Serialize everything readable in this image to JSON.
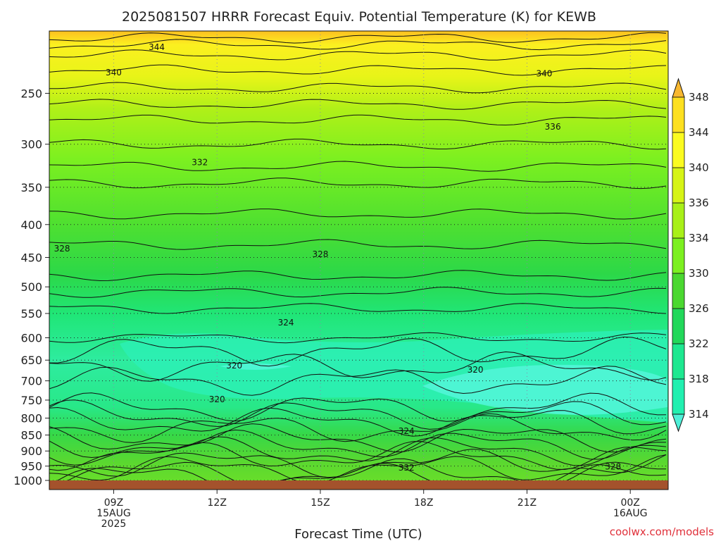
{
  "chart_data": {
    "type": "heatmap",
    "title": "2025081507 HRRR Forecast Equiv. Potential Temperature (K) for KEWB",
    "xlabel": "Forecast Time (UTC)",
    "ylabel": "",
    "credit": "coolwx.com/models",
    "y_scale": "log-pressure",
    "ylim_hPa": [
      1000,
      200
    ],
    "y_ticks": [
      "250",
      "300",
      "350",
      "400",
      "450",
      "500",
      "550",
      "600",
      "650",
      "700",
      "750",
      "800",
      "850",
      "900",
      "950",
      "1000"
    ],
    "x_ticks": [
      {
        "lines": [
          "09Z",
          "15AUG",
          "2025"
        ]
      },
      {
        "lines": [
          "12Z"
        ]
      },
      {
        "lines": [
          "15Z"
        ]
      },
      {
        "lines": [
          "18Z"
        ]
      },
      {
        "lines": [
          "21Z"
        ]
      },
      {
        "lines": [
          "00Z",
          "16AUG"
        ]
      }
    ],
    "grid": "dotted",
    "colorbar": {
      "labels": [
        "314",
        "318",
        "322",
        "326",
        "330",
        "334",
        "336",
        "340",
        "344",
        "348"
      ],
      "colors": [
        "#4ff0d8",
        "#22f0b0",
        "#1ee890",
        "#22d85a",
        "#4ad830",
        "#7cf020",
        "#a8f018",
        "#d6f416",
        "#fbfb20",
        "#fde020",
        "#f8b830"
      ]
    },
    "isotherms_K": [
      {
        "value": 344,
        "pressure_hPa": 210
      },
      {
        "value": 340,
        "pressure_hPa": 230
      },
      {
        "value": 336,
        "pressure_hPa": 275
      },
      {
        "value": 332,
        "pressure_hPa": 325
      },
      {
        "value": 328,
        "pressure_hPa": 430
      },
      {
        "value": 324,
        "pressure_hPa": 540
      },
      {
        "value": 320,
        "pressure_hPa": 665
      },
      {
        "value": 324,
        "pressure_hPa": 830
      },
      {
        "value": 328,
        "pressure_hPa": 940
      },
      {
        "value": 332,
        "pressure_hPa": 960
      }
    ],
    "contour_labels": [
      {
        "text": "344",
        "time": "10:15Z",
        "pressure_hPa": 212
      },
      {
        "text": "340",
        "time": "09:00Z",
        "pressure_hPa": 232
      },
      {
        "text": "340",
        "time": "21:30Z",
        "pressure_hPa": 233
      },
      {
        "text": "336",
        "time": "21:45Z",
        "pressure_hPa": 282
      },
      {
        "text": "332",
        "time": "11:30Z",
        "pressure_hPa": 320
      },
      {
        "text": "328",
        "time": "07:30Z",
        "pressure_hPa": 436
      },
      {
        "text": "328",
        "time": "15:00Z",
        "pressure_hPa": 445
      },
      {
        "text": "324",
        "time": "14:00Z",
        "pressure_hPa": 568
      },
      {
        "text": "320",
        "time": "12:30Z",
        "pressure_hPa": 663
      },
      {
        "text": "320",
        "time": "19:30Z",
        "pressure_hPa": 673
      },
      {
        "text": "320",
        "time": "12:00Z",
        "pressure_hPa": 748
      },
      {
        "text": "324",
        "time": "17:30Z",
        "pressure_hPa": 838
      },
      {
        "text": "332",
        "time": "17:30Z",
        "pressure_hPa": 956
      },
      {
        "text": "328",
        "time": "23:30Z",
        "pressure_hPa": 952
      }
    ]
  }
}
